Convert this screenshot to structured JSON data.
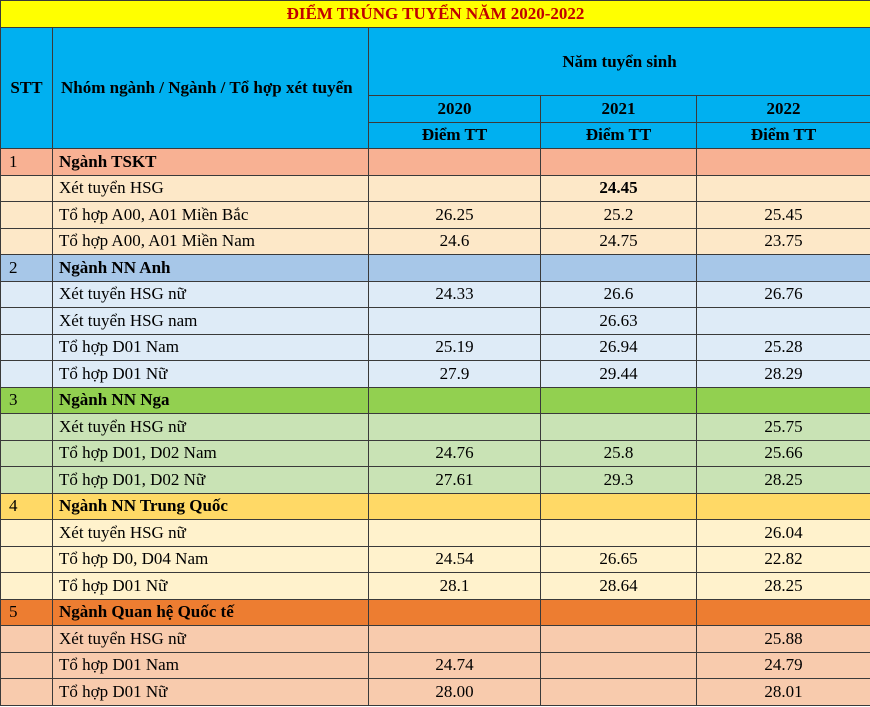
{
  "title": "ĐIỂM TRÚNG TUYỂN NĂM 2020-2022",
  "headers": {
    "stt": "STT",
    "group": "Nhóm ngành / Ngành / Tổ hợp xét tuyển",
    "years_span": "Năm tuyển sinh",
    "years": [
      "2020",
      "2021",
      "2022"
    ],
    "score_label": "Điểm TT"
  },
  "colors": {
    "banner_bg": "#ffff00",
    "banner_text": "#c00000",
    "header_bg": "#00b0f0"
  },
  "groups": [
    {
      "stt": "1",
      "name": "Ngành TSKT",
      "header_bg": "#f8b193",
      "row_bg": "#fde8c8",
      "rows": [
        {
          "label": "Xét tuyển HSG",
          "v2020": "",
          "v2021": "24.45",
          "v2022": "",
          "bold2021": true
        },
        {
          "label": "Tổ hợp A00, A01 Miền Bắc",
          "v2020": "26.25",
          "v2021": "25.2",
          "v2022": "25.45"
        },
        {
          "label": "Tổ hợp A00, A01 Miền Nam",
          "v2020": "24.6",
          "v2021": "24.75",
          "v2022": "23.75"
        }
      ]
    },
    {
      "stt": "2",
      "name": "Ngành NN Anh",
      "header_bg": "#a7c7e8",
      "row_bg": "#deebf7",
      "rows": [
        {
          "label": "Xét tuyển HSG nữ",
          "v2020": "24.33",
          "v2021": "26.6",
          "v2022": "26.76"
        },
        {
          "label": "Xét tuyển HSG nam",
          "v2020": "",
          "v2021": "26.63",
          "v2022": ""
        },
        {
          "label": "Tổ hợp D01 Nam",
          "v2020": "25.19",
          "v2021": "26.94",
          "v2022": "25.28"
        },
        {
          "label": "Tổ hợp D01 Nữ",
          "v2020": "27.9",
          "v2021": "29.44",
          "v2022": "28.29"
        }
      ]
    },
    {
      "stt": "3",
      "name": "Ngành NN Nga",
      "header_bg": "#92d050",
      "row_bg": "#c9e3b5",
      "rows": [
        {
          "label": "Xét tuyển HSG nữ",
          "v2020": "",
          "v2021": "",
          "v2022": "25.75"
        },
        {
          "label": "Tổ hợp D01, D02 Nam",
          "v2020": "24.76",
          "v2021": "25.8",
          "v2022": "25.66"
        },
        {
          "label": "Tổ hợp D01, D02 Nữ",
          "v2020": "27.61",
          "v2021": "29.3",
          "v2022": "28.25"
        }
      ]
    },
    {
      "stt": "4",
      "name": "Ngành NN Trung Quốc",
      "header_bg": "#ffd966",
      "row_bg": "#fff2cc",
      "rows": [
        {
          "label": "Xét tuyển HSG nữ",
          "v2020": "",
          "v2021": "",
          "v2022": "26.04"
        },
        {
          "label": "Tổ hợp D0, D04 Nam",
          "v2020": "24.54",
          "v2021": "26.65",
          "v2022": "22.82"
        },
        {
          "label": "Tổ hợp D01 Nữ",
          "v2020": "28.1",
          "v2021": "28.64",
          "v2022": "28.25"
        }
      ]
    },
    {
      "stt": "5",
      "name": "Ngành Quan hệ Quốc tế",
      "header_bg": "#ed7d31",
      "row_bg": "#f8cbad",
      "rows": [
        {
          "label": "Xét tuyển HSG nữ",
          "v2020": "",
          "v2021": "",
          "v2022": "25.88"
        },
        {
          "label": "Tổ hợp D01 Nam",
          "v2020": "24.74",
          "v2021": "",
          "v2022": "24.79"
        },
        {
          "label": "Tổ hợp D01 Nữ",
          "v2020": "28.00",
          "v2021": "",
          "v2022": "28.01"
        }
      ]
    }
  ]
}
